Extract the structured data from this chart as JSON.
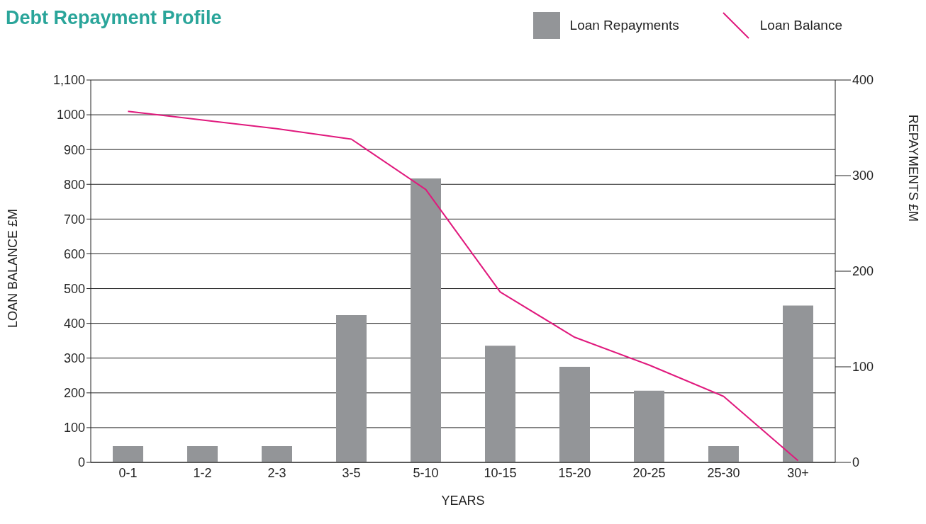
{
  "chart_data": {
    "type": "bar",
    "title": "Debt Repayment Profile",
    "xlabel": "YEARS",
    "ylabel": "LOAN BALANCE £M",
    "y2label": "REPAYMENTS £M",
    "categories": [
      "0-1",
      "1-2",
      "2-3",
      "3-5",
      "5-10",
      "10-15",
      "15-20",
      "20-25",
      "25-30",
      "30+"
    ],
    "series": [
      {
        "name": "Loan Repayments",
        "axis": "y2",
        "color": "#939598",
        "values": [
          17,
          17,
          17,
          154,
          297,
          122,
          100,
          75,
          17,
          164
        ]
      },
      {
        "name": "Loan Balance",
        "type": "line",
        "color": "#e0197d",
        "values": [
          1010,
          985,
          960,
          930,
          785,
          490,
          360,
          280,
          190,
          5
        ]
      }
    ],
    "ylim": [
      0,
      1100
    ],
    "yticks": [
      0,
      100,
      200,
      300,
      400,
      500,
      600,
      700,
      800,
      900,
      1000,
      {
        "value": 1100,
        "label": "1,100"
      }
    ],
    "y2lim": [
      0,
      400
    ],
    "y2ticks": [
      0,
      100,
      200,
      300,
      400
    ],
    "grid": "y",
    "legend": "top right",
    "marker": "none",
    "line_style": "solid"
  }
}
